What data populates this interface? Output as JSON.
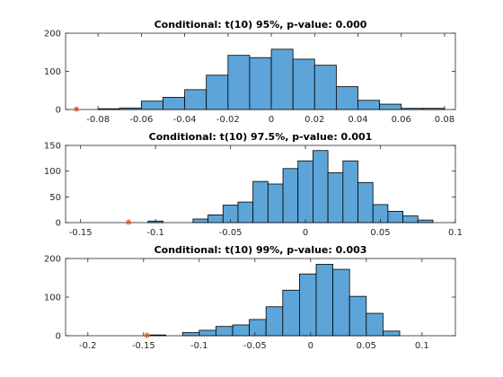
{
  "chart_data": [
    {
      "type": "bar",
      "title": "Conditional: t(10) 95%, p-value: 0.000",
      "xlim": [
        -0.095,
        0.085
      ],
      "ylim": [
        0,
        200
      ],
      "xticks": [
        -0.08,
        -0.06,
        -0.04,
        -0.02,
        0,
        0.02,
        0.04,
        0.06,
        0.08
      ],
      "xtick_labels": [
        "-0.08",
        "-0.06",
        "-0.04",
        "-0.02",
        "0",
        "0.02",
        "0.04",
        "0.06",
        "0.08"
      ],
      "yticks": [
        0,
        100,
        200
      ],
      "ytick_labels": [
        "0",
        "100",
        "200"
      ],
      "bin_edges": [
        -0.08,
        -0.07,
        -0.06,
        -0.05,
        -0.04,
        -0.03,
        -0.02,
        -0.01,
        0.0,
        0.01,
        0.02,
        0.03,
        0.04,
        0.05,
        0.06,
        0.07,
        0.08
      ],
      "counts": [
        2,
        4,
        22,
        32,
        52,
        90,
        142,
        136,
        158,
        132,
        116,
        60,
        24,
        14,
        3,
        3
      ],
      "marker": {
        "x": -0.09,
        "y": 1
      }
    },
    {
      "type": "bar",
      "title": "Conditional: t(10) 97.5%, p-value: 0.001",
      "xlim": [
        -0.16,
        0.1
      ],
      "ylim": [
        0,
        150
      ],
      "xticks": [
        -0.15,
        -0.1,
        -0.05,
        0,
        0.05,
        0.1
      ],
      "xtick_labels": [
        "-0.15",
        "-0.1",
        "-0.05",
        "0",
        "0.05",
        "0.1"
      ],
      "yticks": [
        0,
        50,
        100,
        150
      ],
      "ytick_labels": [
        "0",
        "50",
        "100",
        "150"
      ],
      "bin_edges": [
        -0.105,
        -0.095,
        -0.085,
        -0.075,
        -0.065,
        -0.055,
        -0.045,
        -0.035,
        -0.025,
        -0.015,
        -0.005,
        0.005,
        0.015,
        0.025,
        0.035,
        0.045,
        0.055,
        0.065,
        0.075,
        0.085
      ],
      "counts": [
        3,
        0,
        0,
        7,
        15,
        34,
        40,
        80,
        75,
        105,
        120,
        140,
        97,
        120,
        78,
        35,
        22,
        13,
        5
      ],
      "marker": {
        "x": -0.118,
        "y": 1
      }
    },
    {
      "type": "bar",
      "title": "Conditional: t(10) 99%, p-value: 0.003",
      "xlim": [
        -0.22,
        0.13
      ],
      "ylim": [
        0,
        200
      ],
      "xticks": [
        -0.2,
        -0.15,
        -0.1,
        -0.05,
        0,
        0.05,
        0.1
      ],
      "xtick_labels": [
        "-0.2",
        "-0.15",
        "-0.1",
        "-0.05",
        "0",
        "0.05",
        "0.1"
      ],
      "yticks": [
        0,
        100,
        200
      ],
      "ytick_labels": [
        "0",
        "100",
        "200"
      ],
      "bin_edges": [
        -0.145,
        -0.13,
        -0.115,
        -0.1,
        -0.085,
        -0.07,
        -0.055,
        -0.04,
        -0.025,
        -0.01,
        0.005,
        0.02,
        0.035,
        0.05,
        0.065,
        0.08,
        0.095
      ],
      "counts": [
        2,
        0,
        8,
        14,
        24,
        28,
        42,
        75,
        118,
        160,
        185,
        172,
        102,
        58,
        12,
        0
      ],
      "marker": {
        "x": -0.147,
        "y": 1
      }
    }
  ]
}
